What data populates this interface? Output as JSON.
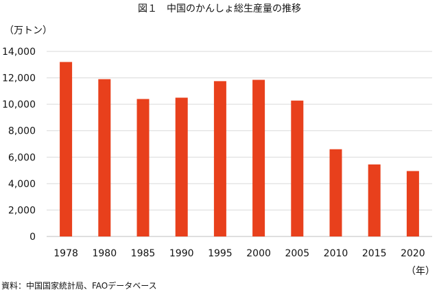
{
  "chart_data": {
    "type": "bar",
    "title": "図１　中国のかんしょ総生産量の推移",
    "ylabel": "（万トン）",
    "xlabel": "（年）",
    "categories": [
      "1978",
      "1980",
      "1985",
      "1990",
      "1995",
      "2000",
      "2005",
      "2010",
      "2015",
      "2020"
    ],
    "values": [
      13200,
      11900,
      10400,
      10500,
      11750,
      11850,
      10280,
      6600,
      5450,
      4950
    ],
    "ylim": [
      0,
      14000
    ],
    "yticks": [
      0,
      2000,
      4000,
      6000,
      8000,
      10000,
      12000,
      14000
    ],
    "ytick_labels": [
      "0",
      "2,000",
      "4,000",
      "6,000",
      "8,000",
      "10,000",
      "12,000",
      "14,000"
    ],
    "grid": true,
    "legend": "none",
    "bar_color": "#e8401c",
    "grid_color": "#d9d9d9"
  },
  "source": "資料：中国国家統計局、FAOデータベース"
}
